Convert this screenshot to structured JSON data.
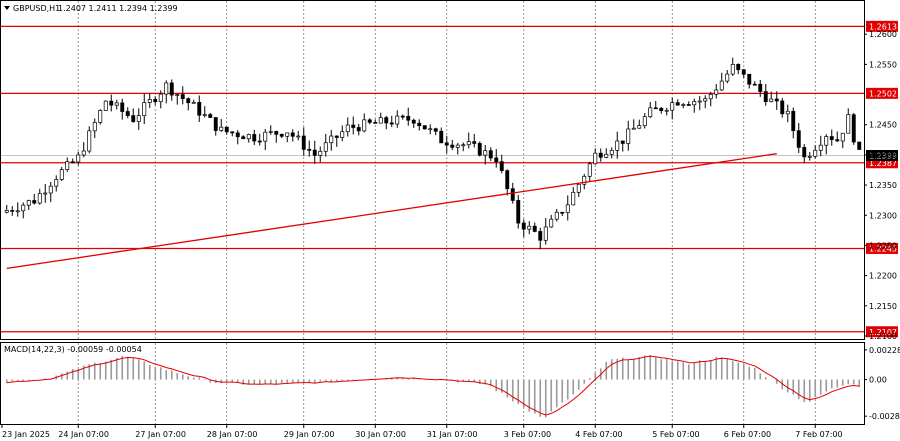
{
  "header": {
    "symbol": "GBPUSD,H1",
    "ohlc": "1.2407 1.2411 1.2394 1.2399"
  },
  "chart_data": {
    "type": "candlestick",
    "ylim": [
      1.2095,
      1.2655
    ],
    "price_ticks": [
      "1.2600",
      "1.2550",
      "1.2450",
      "1.2400",
      "1.2350",
      "1.2300",
      "1.2250",
      "1.2200",
      "1.2150",
      "1.2100"
    ],
    "time_labels": [
      "23 Jan 2025",
      "24 Jan 07:00",
      "27 Jan 07:00",
      "28 Jan 07:00",
      "29 Jan 07:00",
      "30 Jan 07:00",
      "31 Jan 07:00",
      "3 Feb 07:00",
      "4 Feb 07:00",
      "5 Feb 07:00",
      "6 Feb 07:00",
      "7 Feb 07:00"
    ],
    "levels": [
      {
        "label": "1.2613",
        "value": 1.2613
      },
      {
        "label": "1.2502",
        "value": 1.2502
      },
      {
        "label": "1.2387",
        "value": 1.2387
      },
      {
        "label": "1.2245",
        "value": 1.2245
      },
      {
        "label": "1.2107",
        "value": 1.2107
      }
    ],
    "current_price": {
      "label": "1.2399",
      "value": 1.2399
    },
    "trendline": [
      {
        "bar": 0,
        "price": 1.2212
      },
      {
        "bar": 140,
        "price": 1.2402
      }
    ],
    "bar_count": 156,
    "price_path": [
      [
        0,
        1.2305
      ],
      [
        6,
        1.2325
      ],
      [
        10,
        1.2365
      ],
      [
        14,
        1.2395
      ],
      [
        19,
        1.249
      ],
      [
        24,
        1.246
      ],
      [
        30,
        1.2515
      ],
      [
        35,
        1.248
      ],
      [
        40,
        1.244
      ],
      [
        46,
        1.243
      ],
      [
        52,
        1.244
      ],
      [
        57,
        1.24
      ],
      [
        63,
        1.2445
      ],
      [
        70,
        1.2455
      ],
      [
        75,
        1.246
      ],
      [
        80,
        1.2425
      ],
      [
        85,
        1.2415
      ],
      [
        90,
        1.2395
      ],
      [
        94,
        1.229
      ],
      [
        98,
        1.2265
      ],
      [
        103,
        1.232
      ],
      [
        108,
        1.24
      ],
      [
        113,
        1.2425
      ],
      [
        118,
        1.247
      ],
      [
        123,
        1.249
      ],
      [
        128,
        1.249
      ],
      [
        133,
        1.2545
      ],
      [
        138,
        1.2505
      ],
      [
        143,
        1.2465
      ],
      [
        146,
        1.2395
      ],
      [
        150,
        1.2435
      ],
      [
        152,
        1.2425
      ],
      [
        154,
        1.246
      ],
      [
        156,
        1.24
      ]
    ],
    "macd": {
      "label": "MACD(14,22,3) -0.00059 -0.00054",
      "ylim": [
        -0.0034,
        0.0028
      ],
      "ticks": [
        "0.00228",
        "0.00",
        "-0.0028"
      ],
      "hist_path": [
        [
          0,
          -0.0002
        ],
        [
          8,
          0.0001
        ],
        [
          16,
          0.0012
        ],
        [
          22,
          0.0018
        ],
        [
          30,
          0.0007
        ],
        [
          38,
          -0.0002
        ],
        [
          46,
          -0.0004
        ],
        [
          58,
          -0.0002
        ],
        [
          70,
          0.0002
        ],
        [
          80,
          0.0
        ],
        [
          88,
          -0.0004
        ],
        [
          92,
          -0.0015
        ],
        [
          98,
          -0.003
        ],
        [
          104,
          -0.001
        ],
        [
          110,
          0.0015
        ],
        [
          118,
          0.0018
        ],
        [
          124,
          0.0012
        ],
        [
          130,
          0.0017
        ],
        [
          136,
          0.001
        ],
        [
          142,
          -0.0008
        ],
        [
          146,
          -0.0018
        ],
        [
          150,
          -0.0008
        ],
        [
          154,
          -0.0002
        ],
        [
          156,
          -0.0006
        ]
      ]
    }
  }
}
